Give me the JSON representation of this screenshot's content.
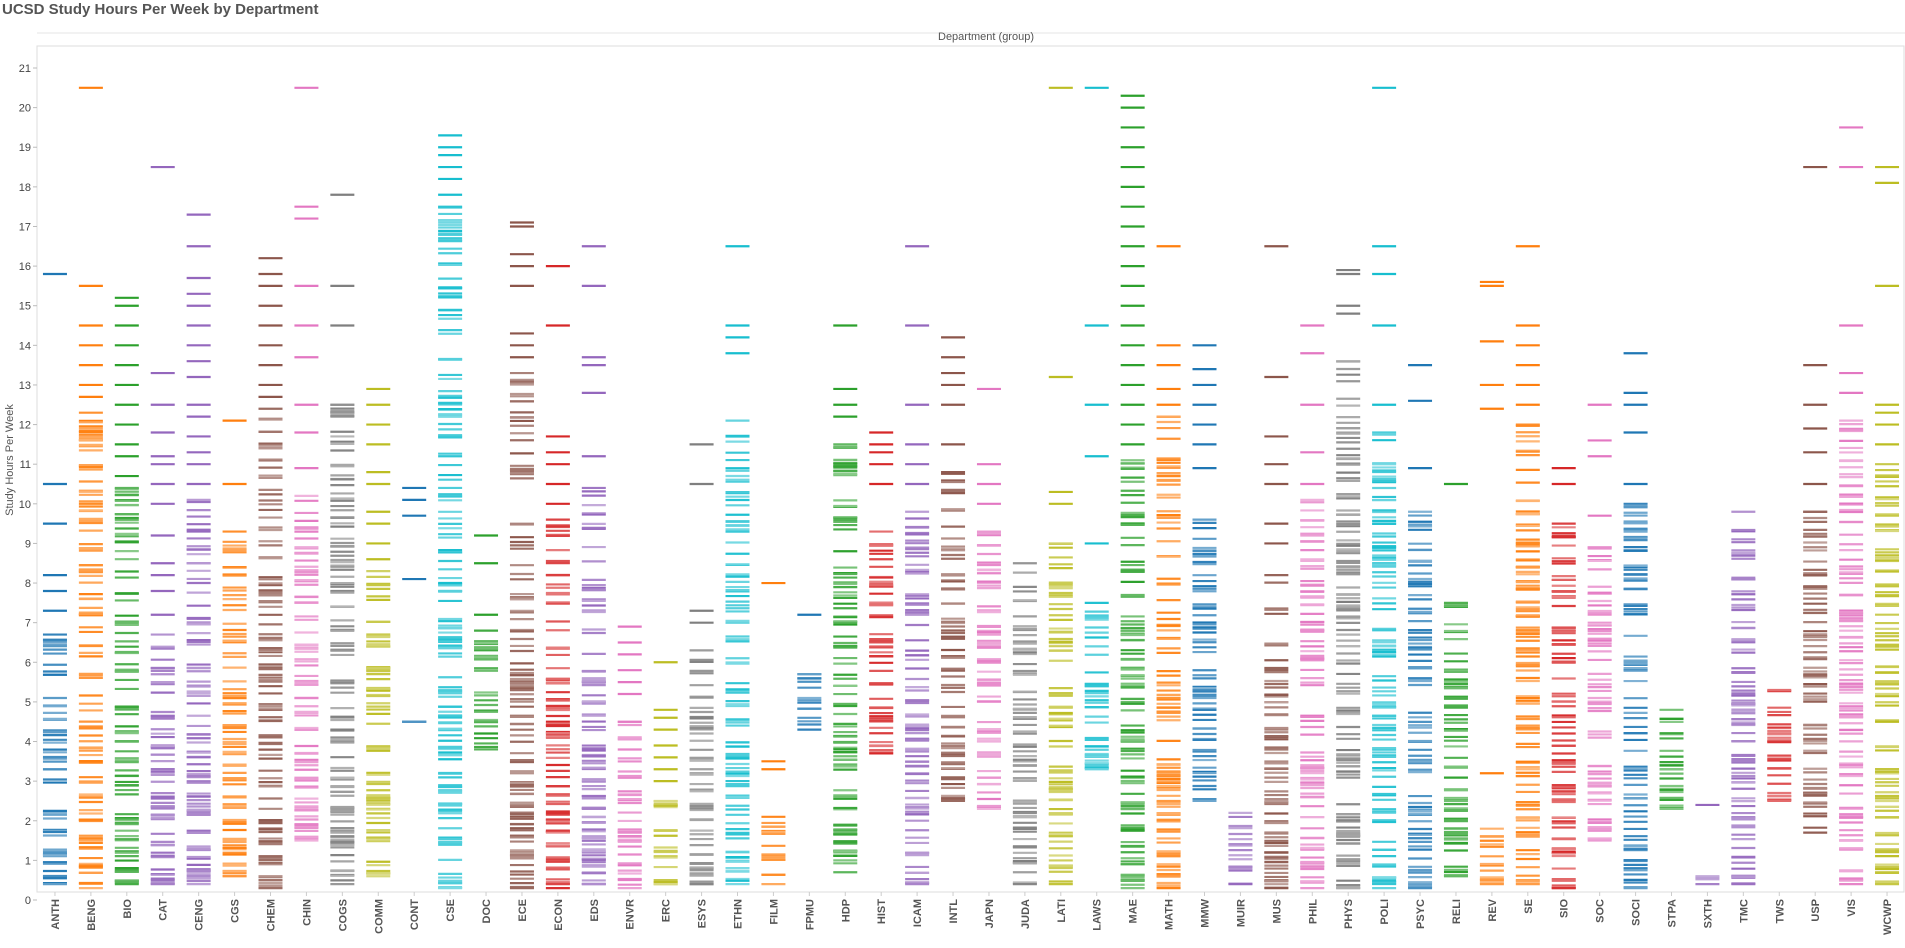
{
  "title": "UCSD Study Hours Per Week by Department",
  "chart_data": {
    "type": "strip",
    "title": "UCSD Study Hours Per Week by Department",
    "header_label": "Department (group)",
    "ylabel": "Study Hours Per Week",
    "ylim": [
      0,
      21.5
    ],
    "yticks": [
      0,
      1,
      2,
      3,
      4,
      5,
      6,
      7,
      8,
      9,
      10,
      11,
      12,
      13,
      14,
      15,
      16,
      17,
      18,
      19,
      20,
      21
    ],
    "grid": false,
    "departments": [
      {
        "name": "ANTH",
        "color": "#1f77b4",
        "min": 0.4,
        "max": 6.7,
        "outliers": [
          7.3,
          7.8,
          8.2,
          9.5,
          10.5,
          15.8
        ]
      },
      {
        "name": "BENG",
        "color": "#ff7f0e",
        "min": 0.3,
        "max": 12.3,
        "outliers": [
          12.7,
          13,
          13.5,
          14,
          14.5,
          15.5,
          20.5
        ]
      },
      {
        "name": "BIO",
        "color": "#2ca02c",
        "min": 0.4,
        "max": 10.4,
        "outliers": [
          10.7,
          11.2,
          11.5,
          12,
          12.5,
          13,
          13.5,
          14,
          14.5,
          15,
          15.2
        ]
      },
      {
        "name": "CAT",
        "color": "#9467bd",
        "min": 0.4,
        "max": 6.7,
        "outliers": [
          7.2,
          7.8,
          8.2,
          8.5,
          9.2,
          10,
          10.5,
          11,
          11.2,
          11.8,
          12.5,
          13.3,
          18.5
        ]
      },
      {
        "name": "CENG",
        "color": "#9467bd",
        "min": 0.4,
        "max": 10.1,
        "outliers": [
          10.5,
          11,
          11.3,
          11.7,
          12.2,
          12.5,
          13.2,
          13.6,
          14,
          14.5,
          15,
          15.3,
          15.7,
          16.5,
          17.3
        ]
      },
      {
        "name": "CGS",
        "color": "#ff7f0e",
        "min": 0.6,
        "max": 9.3,
        "outliers": [
          10.5,
          12.1
        ]
      },
      {
        "name": "CHEM",
        "color": "#8c564b",
        "min": 0.3,
        "max": 12.4,
        "outliers": [
          12.7,
          13,
          13.5,
          14,
          14.5,
          15,
          15.5,
          15.8,
          16.2
        ]
      },
      {
        "name": "CHIN",
        "color": "#e377c2",
        "min": 1.5,
        "max": 10.2,
        "outliers": [
          10.9,
          11.8,
          12.5,
          13.7,
          14.5,
          15.5,
          17.2,
          17.5,
          20.5
        ]
      },
      {
        "name": "COGS",
        "color": "#7f7f7f",
        "min": 0.4,
        "max": 12.5,
        "outliers": [
          14.5,
          15.5,
          17.8
        ]
      },
      {
        "name": "COMM",
        "color": "#bcbd22",
        "min": 0.6,
        "max": 8.3,
        "outliers": [
          8.6,
          9,
          9.5,
          9.8,
          10.5,
          10.8,
          11.5,
          12,
          12.5,
          12.9
        ]
      },
      {
        "name": "CONT",
        "color": "#1f77b4",
        "min": 4.5,
        "max": 4.5,
        "outliers": [
          8.1,
          9.7,
          10.1,
          10.4
        ]
      },
      {
        "name": "CSE",
        "color": "#17becf",
        "min": 0.3,
        "max": 17.5,
        "outliers": [
          17.8,
          18.2,
          18.5,
          18.8,
          19,
          19.3
        ]
      },
      {
        "name": "DOC",
        "color": "#2ca02c",
        "min": 3.8,
        "max": 6.8,
        "outliers": [
          7.2,
          8.5,
          9.2
        ]
      },
      {
        "name": "ECE",
        "color": "#8c564b",
        "min": 0.3,
        "max": 13.3,
        "outliers": [
          13.7,
          14,
          14.3,
          15.5,
          16,
          16.3,
          17,
          17.1
        ]
      },
      {
        "name": "ECON",
        "color": "#d62728",
        "min": 0.3,
        "max": 9.6,
        "outliers": [
          10,
          10.5,
          11,
          11.3,
          11.7,
          14.5,
          16
        ]
      },
      {
        "name": "EDS",
        "color": "#9467bd",
        "min": 0.4,
        "max": 10.4,
        "outliers": [
          11.2,
          12.8,
          13.5,
          13.7,
          15.5,
          16.5
        ]
      },
      {
        "name": "ENVR",
        "color": "#e377c2",
        "min": 0.3,
        "max": 4.5,
        "outliers": [
          5.2,
          5.5,
          5.8,
          6.2,
          6.5,
          6.9
        ]
      },
      {
        "name": "ERC",
        "color": "#bcbd22",
        "min": 0.4,
        "max": 2.5,
        "outliers": [
          3,
          3.3,
          3.6,
          3.9,
          4.3,
          4.6,
          4.8,
          6
        ]
      },
      {
        "name": "ESYS",
        "color": "#7f7f7f",
        "min": 0.4,
        "max": 6.3,
        "outliers": [
          7,
          7.3,
          10.5,
          11.5
        ]
      },
      {
        "name": "ETHN",
        "color": "#17becf",
        "min": 0.4,
        "max": 12.1,
        "outliers": [
          13.8,
          14.2,
          14.5,
          16.5
        ]
      },
      {
        "name": "FILM",
        "color": "#ff7f0e",
        "min": 0.4,
        "max": 2.1,
        "outliers": [
          3.3,
          3.5,
          8
        ]
      },
      {
        "name": "FPMU",
        "color": "#1f77b4",
        "min": 4.3,
        "max": 5.7,
        "outliers": [
          7.2
        ]
      },
      {
        "name": "HDP",
        "color": "#2ca02c",
        "min": 0.7,
        "max": 11.5,
        "outliers": [
          12.2,
          12.5,
          12.9,
          14.5
        ]
      },
      {
        "name": "HIST",
        "color": "#d62728",
        "min": 3.7,
        "max": 9.3,
        "outliers": [
          10.5,
          11,
          11.3,
          11.5,
          11.8
        ]
      },
      {
        "name": "ICAM",
        "color": "#9467bd",
        "min": 0.4,
        "max": 9.8,
        "outliers": [
          10.5,
          11,
          11.5,
          12.5,
          14.5,
          16.5
        ]
      },
      {
        "name": "INTL",
        "color": "#8c564b",
        "min": 2.5,
        "max": 10.8,
        "outliers": [
          11.5,
          12.5,
          13,
          13.3,
          13.7,
          14.2
        ]
      },
      {
        "name": "JAPN",
        "color": "#e377c2",
        "min": 2.3,
        "max": 9.3,
        "outliers": [
          10,
          10.5,
          11,
          12.9
        ]
      },
      {
        "name": "JUDA",
        "color": "#7f7f7f",
        "min": 0.4,
        "max": 8.5,
        "outliers": []
      },
      {
        "name": "LATI",
        "color": "#bcbd22",
        "min": 0.4,
        "max": 9,
        "outliers": [
          10,
          10.3,
          13.2,
          20.5
        ]
      },
      {
        "name": "LAWS",
        "color": "#17becf",
        "min": 3.3,
        "max": 7.5,
        "outliers": [
          9,
          11.2,
          12.5,
          14.5,
          20.5
        ]
      },
      {
        "name": "MAE",
        "color": "#2ca02c",
        "min": 0.3,
        "max": 11.1,
        "outliers": [
          11.5,
          12,
          12.5,
          13,
          13.5,
          14,
          14.5,
          15,
          15.5,
          16,
          16.5,
          17,
          17.5,
          18,
          18.5,
          19,
          19.5,
          20,
          20.3
        ]
      },
      {
        "name": "MATH",
        "color": "#ff7f0e",
        "min": 0.3,
        "max": 12.2,
        "outliers": [
          12.5,
          12.9,
          13.5,
          14,
          16.5
        ]
      },
      {
        "name": "MMW",
        "color": "#1f77b4",
        "min": 2.5,
        "max": 9.6,
        "outliers": [
          10.9,
          11.5,
          12,
          12.5,
          13,
          13.4,
          14
        ]
      },
      {
        "name": "MUIR",
        "color": "#9467bd",
        "min": 0.4,
        "max": 2.2,
        "outliers": []
      },
      {
        "name": "MUS",
        "color": "#8c564b",
        "min": 0.3,
        "max": 8.2,
        "outliers": [
          9,
          9.5,
          10.5,
          11,
          11.7,
          13.2,
          16.5
        ]
      },
      {
        "name": "PHIL",
        "color": "#e377c2",
        "min": 0.3,
        "max": 10.1,
        "outliers": [
          10.5,
          11.3,
          12.5,
          13.8,
          14.5
        ]
      },
      {
        "name": "PHYS",
        "color": "#7f7f7f",
        "min": 0.3,
        "max": 13.6,
        "outliers": [
          14.8,
          15,
          15.8,
          15.9
        ]
      },
      {
        "name": "POLI",
        "color": "#17becf",
        "min": 0.3,
        "max": 11.8,
        "outliers": [
          12.5,
          14.5,
          15.8,
          16.5,
          20.5
        ]
      },
      {
        "name": "PSYC",
        "color": "#1f77b4",
        "min": 0.3,
        "max": 9.8,
        "outliers": [
          10.9,
          12.6,
          13.5
        ]
      },
      {
        "name": "RELI",
        "color": "#2ca02c",
        "min": 0.6,
        "max": 7.5,
        "outliers": [
          10.5
        ]
      },
      {
        "name": "REV",
        "color": "#ff7f0e",
        "min": 0.4,
        "max": 1.8,
        "outliers": [
          3.2,
          12.4,
          13,
          14.1,
          15.5,
          15.6
        ]
      },
      {
        "name": "SE",
        "color": "#ff7f0e",
        "min": 0.4,
        "max": 12,
        "outliers": [
          12.5,
          13,
          13.5,
          14,
          14.5,
          16.5
        ]
      },
      {
        "name": "SIO",
        "color": "#d62728",
        "min": 0.3,
        "max": 9.5,
        "outliers": [
          10.5,
          10.9
        ]
      },
      {
        "name": "SOC",
        "color": "#e377c2",
        "min": 1.5,
        "max": 8.9,
        "outliers": [
          9.7,
          11.2,
          11.6,
          12.5
        ]
      },
      {
        "name": "SOCI",
        "color": "#1f77b4",
        "min": 0.3,
        "max": 10,
        "outliers": [
          10.5,
          11.8,
          12.5,
          12.8,
          13.8
        ]
      },
      {
        "name": "STPA",
        "color": "#2ca02c",
        "min": 2.3,
        "max": 4.8,
        "outliers": []
      },
      {
        "name": "SXTH",
        "color": "#9467bd",
        "min": 0.4,
        "max": 0.6,
        "outliers": [
          2.4
        ]
      },
      {
        "name": "TMC",
        "color": "#9467bd",
        "min": 0.4,
        "max": 9.8,
        "outliers": []
      },
      {
        "name": "TWS",
        "color": "#d62728",
        "min": 2.5,
        "max": 5.3,
        "outliers": []
      },
      {
        "name": "USP",
        "color": "#8c564b",
        "min": 1.7,
        "max": 9.8,
        "outliers": [
          10.5,
          11.3,
          11.9,
          12.5,
          13.5,
          18.5
        ]
      },
      {
        "name": "VIS",
        "color": "#e377c2",
        "min": 0.4,
        "max": 12.1,
        "outliers": [
          12.8,
          13.3,
          14.5,
          18.5,
          19.5
        ]
      },
      {
        "name": "WCWP",
        "color": "#bcbd22",
        "min": 0.4,
        "max": 11,
        "outliers": [
          11.5,
          12,
          12.3,
          12.5,
          15.5,
          18.1,
          18.5
        ]
      }
    ]
  }
}
